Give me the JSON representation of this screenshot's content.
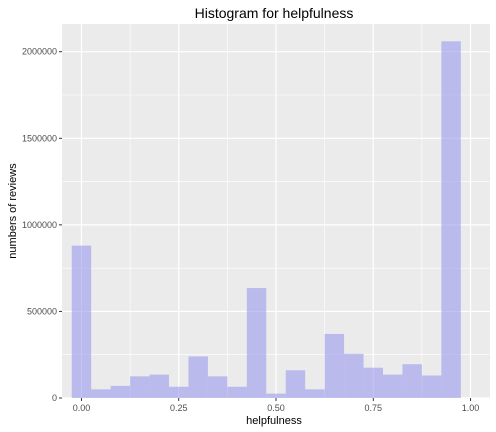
{
  "chart_data": {
    "type": "bar",
    "title": "Histogram for helpfulness",
    "xlabel": "helpfulness",
    "ylabel": "numbers of reviews",
    "xlim": [
      -0.05,
      1.05
    ],
    "ylim": [
      0,
      2160000
    ],
    "x_ticks": [
      0,
      0.25,
      0.5,
      0.75,
      1
    ],
    "x_tick_labels": [
      "0.00",
      "0.25",
      "0.50",
      "0.75",
      "1.00"
    ],
    "y_ticks": [
      0,
      500000,
      1000000,
      1500000,
      2000000
    ],
    "y_tick_labels": [
      "0",
      "500000",
      "1000000",
      "1500000",
      "2000000"
    ],
    "bin_width": 0.05,
    "bins": [
      {
        "x": 0.0,
        "count": 880000
      },
      {
        "x": 0.05,
        "count": 50000
      },
      {
        "x": 0.1,
        "count": 70000
      },
      {
        "x": 0.15,
        "count": 125000
      },
      {
        "x": 0.2,
        "count": 135000
      },
      {
        "x": 0.25,
        "count": 65000
      },
      {
        "x": 0.3,
        "count": 240000
      },
      {
        "x": 0.35,
        "count": 125000
      },
      {
        "x": 0.4,
        "count": 65000
      },
      {
        "x": 0.45,
        "count": 635000
      },
      {
        "x": 0.5,
        "count": 25000
      },
      {
        "x": 0.55,
        "count": 160000
      },
      {
        "x": 0.6,
        "count": 50000
      },
      {
        "x": 0.65,
        "count": 370000
      },
      {
        "x": 0.7,
        "count": 255000
      },
      {
        "x": 0.75,
        "count": 175000
      },
      {
        "x": 0.8,
        "count": 135000
      },
      {
        "x": 0.85,
        "count": 195000
      },
      {
        "x": 0.9,
        "count": 130000
      },
      {
        "x": 0.95,
        "count": 2060000
      }
    ],
    "bar_color": "#9999ee",
    "panel_background": "#ebebeb",
    "gridline_color": "#ffffff",
    "grid": true,
    "legend": "none"
  }
}
